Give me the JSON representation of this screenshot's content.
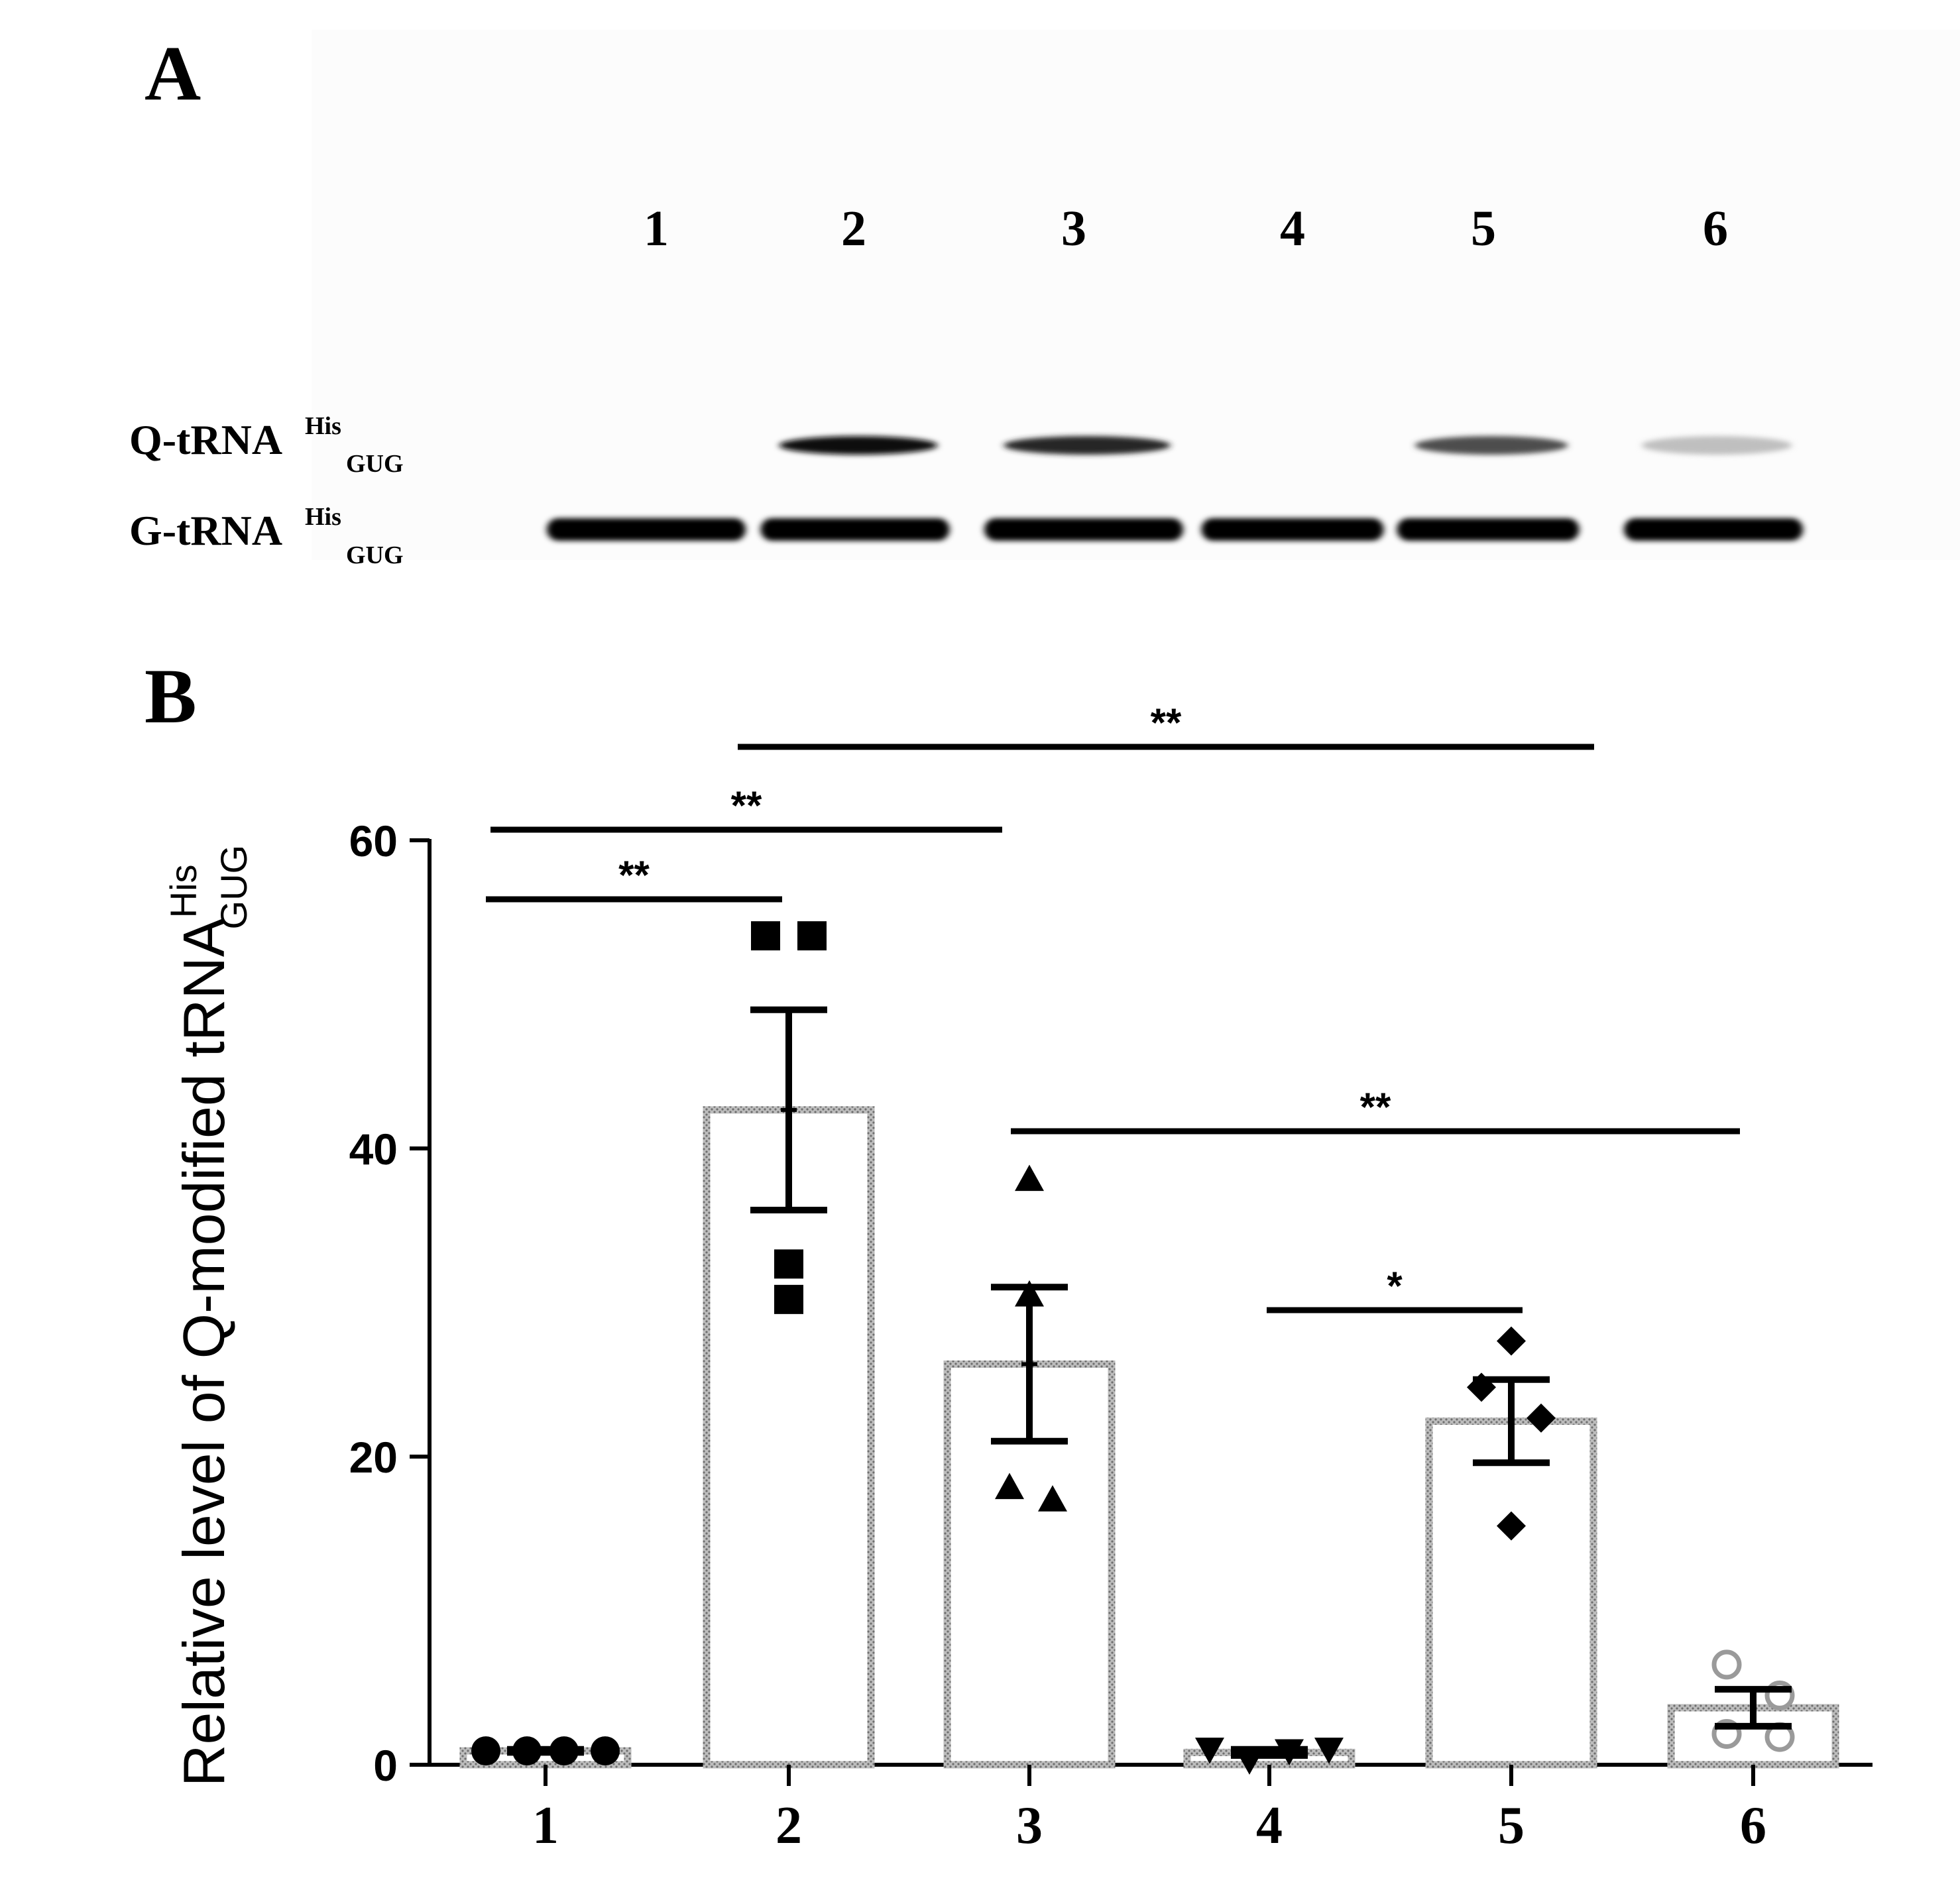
{
  "panel_a": {
    "letter": "A",
    "lanes": [
      "1",
      "2",
      "3",
      "4",
      "5",
      "6"
    ],
    "band_labels": {
      "q": {
        "main": "Q-tRNA",
        "sup": "His",
        "sub": "GUG"
      },
      "g": {
        "main": "G-tRNA",
        "sup": "His",
        "sub": "GUG"
      }
    },
    "q_band_intensity": [
      0.0,
      0.95,
      0.85,
      0.0,
      0.7,
      0.25
    ],
    "g_band_intensity": [
      1.0,
      1.0,
      1.0,
      1.0,
      1.0,
      1.0
    ]
  },
  "panel_b": {
    "letter": "B"
  },
  "chart_data": {
    "type": "bar",
    "categories": [
      "1",
      "2",
      "3",
      "4",
      "5",
      "6"
    ],
    "values": [
      0.9,
      42.5,
      26.0,
      0.8,
      22.3,
      3.7
    ],
    "error_sem": [
      0.1,
      6.5,
      5.0,
      0.2,
      2.7,
      1.2
    ],
    "points": [
      [
        0.9,
        0.9,
        0.9,
        0.9
      ],
      [
        53.8,
        53.8,
        32.5,
        30.2
      ],
      [
        38.0,
        30.5,
        18.0,
        17.2
      ],
      [
        1.0,
        0.3,
        0.9,
        1.0
      ],
      [
        27.5,
        24.5,
        22.5,
        15.5
      ],
      [
        6.5,
        4.5,
        2.0,
        1.8
      ]
    ],
    "markers": [
      "circle",
      "square",
      "triangle-up",
      "triangle-down",
      "diamond",
      "circle-open"
    ],
    "ylabel": {
      "main": "Relative level of Q-modified tRNA",
      "sup": "His",
      "sub": "GUG"
    },
    "xlabel": "",
    "ylim": [
      0,
      60
    ],
    "yticks": [
      "0",
      "20",
      "40",
      "60"
    ],
    "significance": [
      {
        "from": "1",
        "to": "2",
        "label": "**"
      },
      {
        "from": "1",
        "to": "3",
        "label": "**"
      },
      {
        "from": "2",
        "to": "5",
        "label": "**"
      },
      {
        "from": "3",
        "to": "6",
        "label": "**"
      },
      {
        "from": "4",
        "to": "5",
        "label": "*"
      }
    ],
    "colors": {
      "bar_edge": "#8a8a8a",
      "axis": "#000000",
      "point": "#000000"
    }
  }
}
